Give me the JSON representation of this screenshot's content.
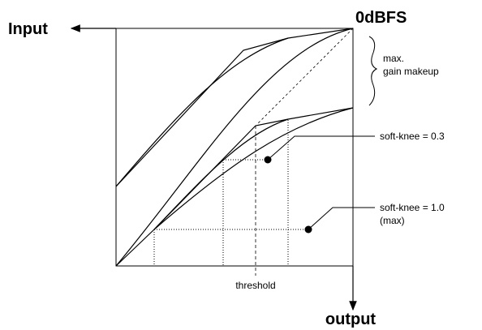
{
  "input_label": "Input",
  "full_scale_label": "0dBFS",
  "makeup_label": {
    "line1": "max.",
    "line2": "gain makeup"
  },
  "soft_knee_low": "soft-knee = 0.3",
  "soft_knee_high": {
    "line1": "soft-knee = 1.0",
    "line2": "(max)"
  },
  "threshold_label": "threshold",
  "output_label": "output"
}
